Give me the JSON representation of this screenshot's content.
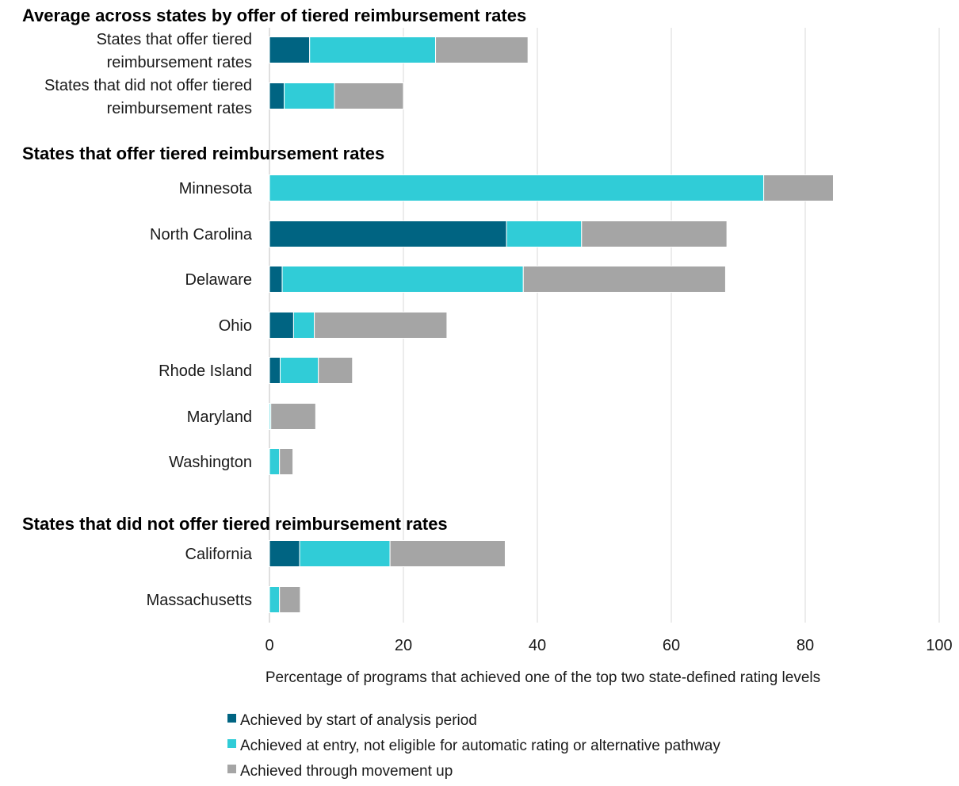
{
  "chart_data": {
    "type": "bar",
    "orientation": "horizontal",
    "stacked": true,
    "xlabel": "Percentage of programs that achieved one of the top two state-defined rating levels",
    "xlim": [
      0,
      100
    ],
    "xticks": [
      "0",
      "20",
      "40",
      "60",
      "80",
      "100"
    ],
    "grid": true,
    "legend_position": "bottom-left",
    "series": [
      {
        "name": "Achieved by start of analysis period",
        "color": "#006482"
      },
      {
        "name": "Achieved at entry, not eligible for automatic rating or alternative pathway",
        "color": "#30CCD7"
      },
      {
        "name": "Achieved through movement up",
        "color": "#A5A5A5"
      }
    ],
    "groups": [
      {
        "title": "Average across states by offer of tiered reimbursement rates",
        "rows": [
          {
            "label": [
              "States that offer tiered",
              "reimbursement rates"
            ],
            "values": [
              6,
              18.8,
              13.8
            ]
          },
          {
            "label": [
              "States that did not offer tiered",
              "reimbursement rates"
            ],
            "values": [
              2.2,
              7.5,
              10.3
            ]
          }
        ]
      },
      {
        "title": "States that offer tiered reimbursement rates",
        "rows": [
          {
            "label": [
              "Minnesota"
            ],
            "values": [
              0,
              73.8,
              10.4
            ]
          },
          {
            "label": [
              "North Carolina"
            ],
            "values": [
              35.4,
              11.2,
              21.7
            ]
          },
          {
            "label": [
              "Delaware"
            ],
            "values": [
              1.9,
              36,
              30.2
            ]
          },
          {
            "label": [
              "Ohio"
            ],
            "values": [
              3.6,
              3.1,
              19.8
            ]
          },
          {
            "label": [
              "Rhode Island"
            ],
            "values": [
              1.6,
              5.7,
              5.1
            ]
          },
          {
            "label": [
              "Maryland"
            ],
            "values": [
              0,
              0.2,
              6.7
            ]
          },
          {
            "label": [
              "Washington"
            ],
            "values": [
              0,
              1.5,
              2
            ]
          }
        ]
      },
      {
        "title": "States that did not offer tiered reimbursement rates",
        "rows": [
          {
            "label": [
              "California"
            ],
            "values": [
              4.5,
              13.5,
              17.2
            ]
          },
          {
            "label": [
              "Massachusetts"
            ],
            "values": [
              0,
              1.5,
              3.1
            ]
          }
        ]
      }
    ]
  }
}
